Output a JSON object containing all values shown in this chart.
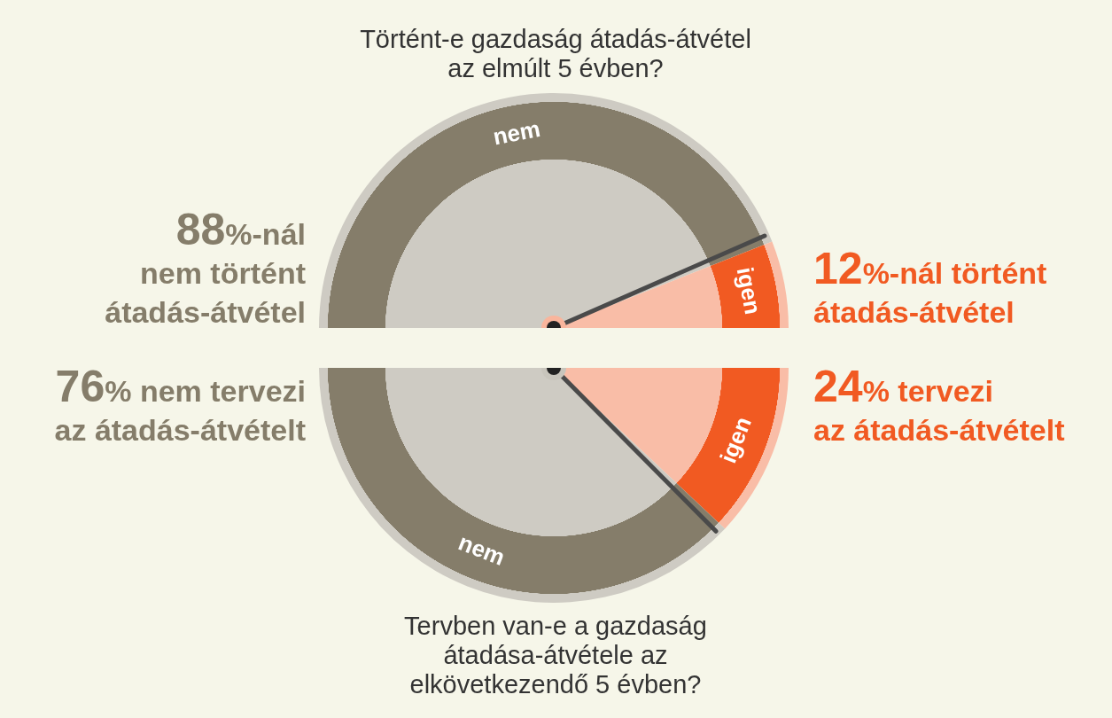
{
  "chart_data": [
    {
      "type": "pie",
      "title": "Történt-e gazdaság átadás-átvétel\naz elmúlt 5 évben?",
      "categories": [
        "nem",
        "igen"
      ],
      "values": [
        88,
        12
      ],
      "colors": [
        "#857d6a",
        "#f15a22"
      ],
      "needle": "nem",
      "annotations": [
        "88%-nál\nnem történt\nátadás-átvétel",
        "12%-nál történt\nátadás-átvétel"
      ]
    },
    {
      "type": "pie",
      "title": "Tervben van-e a gazdaság\nátadása-átvétele az\nelkövetkezendő 5 évben?",
      "categories": [
        "igen",
        "nem"
      ],
      "values": [
        24,
        76
      ],
      "colors": [
        "#f15a22",
        "#857d6a"
      ],
      "needle": "nem",
      "annotations": [
        "24% tervezi\naz átadás-átvételt",
        "76% nem tervezi\naz átadás-átvételt"
      ]
    }
  ]
}
